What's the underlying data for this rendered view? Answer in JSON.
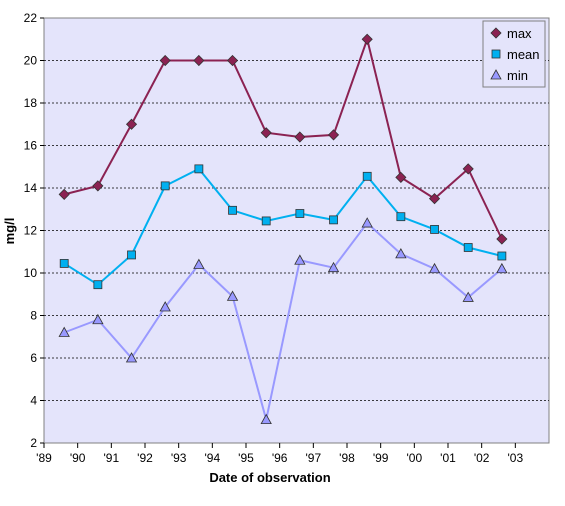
{
  "chart_data": {
    "type": "line",
    "title": "",
    "xlabel": "Date of observation",
    "ylabel": "mg/l",
    "xlim": [
      1989,
      2004
    ],
    "ylim": [
      2,
      22
    ],
    "y_ticks": [
      2,
      4,
      6,
      8,
      10,
      12,
      14,
      16,
      18,
      20,
      22
    ],
    "x_ticks": [
      1989,
      1990,
      1991,
      1992,
      1993,
      1994,
      1995,
      1996,
      1997,
      1998,
      1999,
      2000,
      2001,
      2002,
      2003
    ],
    "x_tick_labels": [
      "'89",
      "'90",
      "'91",
      "'92",
      "'93",
      "'94",
      "'95",
      "'96",
      "'97",
      "'98",
      "'99",
      "'00",
      "'01",
      "'02",
      "'03"
    ],
    "y_tick_labels": [
      "2",
      "4",
      "6",
      "8",
      "10",
      "12",
      "14",
      "16",
      "18",
      "20",
      "22"
    ],
    "x": [
      1989.6,
      1990.6,
      1991.6,
      1992.6,
      1993.6,
      1994.6,
      1995.6,
      1996.6,
      1997.6,
      1998.6,
      1999.6,
      2000.6,
      2001.6,
      2002.6
    ],
    "grid": "horizontal dotted",
    "legend_position": "top-right",
    "series": [
      {
        "name": "max",
        "marker": "diamond",
        "color": "#8B2252",
        "values": [
          13.7,
          14.1,
          17.0,
          20.0,
          20.0,
          20.0,
          16.6,
          16.4,
          16.5,
          21.0,
          14.5,
          13.5,
          14.9,
          11.6
        ]
      },
      {
        "name": "mean",
        "marker": "square",
        "color": "#00B0F0",
        "values": [
          10.45,
          9.45,
          10.85,
          14.1,
          14.9,
          12.95,
          12.45,
          12.8,
          12.5,
          14.55,
          12.65,
          12.05,
          11.2,
          10.8
        ]
      },
      {
        "name": "min",
        "marker": "triangle",
        "color": "#9999FF",
        "values": [
          7.2,
          7.8,
          6.0,
          8.4,
          10.4,
          8.9,
          3.1,
          10.6,
          10.25,
          12.35,
          10.9,
          10.2,
          8.85,
          10.2
        ]
      }
    ]
  }
}
